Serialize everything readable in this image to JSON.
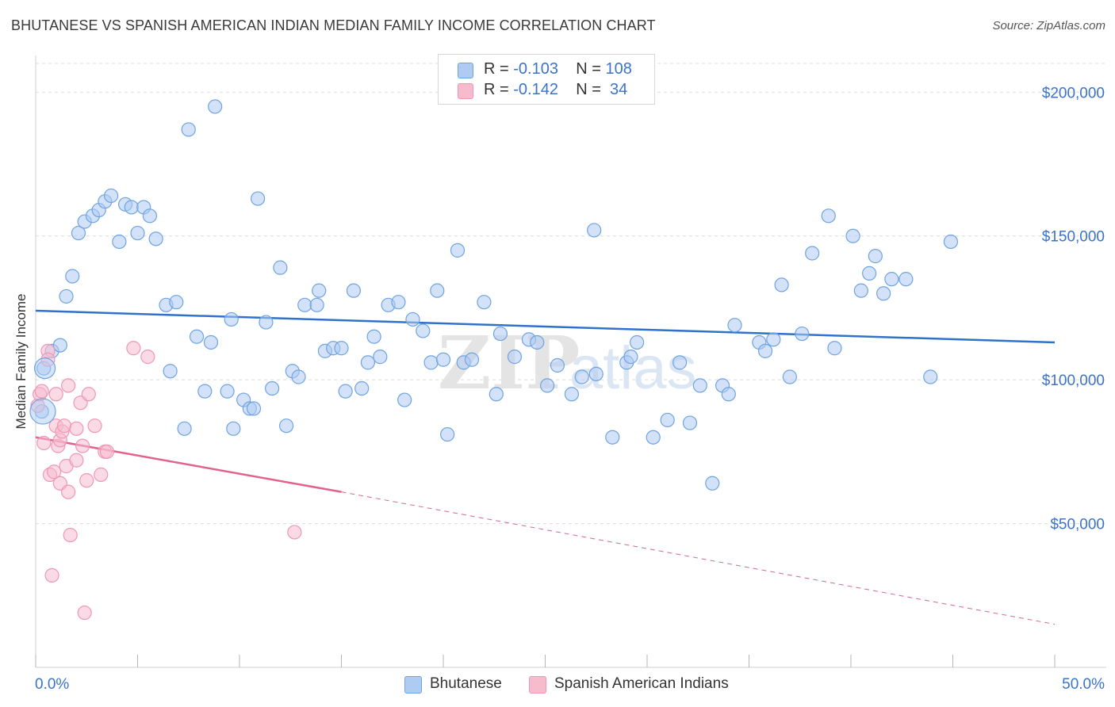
{
  "header": {
    "title": "BHUTANESE VS SPANISH AMERICAN INDIAN MEDIAN FAMILY INCOME CORRELATION CHART",
    "source": "Source: ZipAtlas.com"
  },
  "legend": {
    "rows": [
      {
        "r_label": "R =",
        "r_value": "-0.103",
        "n_label": "N =",
        "n_value": "108",
        "color": "#aecbf2"
      },
      {
        "r_label": "R =",
        "r_value": "-0.142",
        "n_label": "N =",
        "n_value": "34",
        "color": "#f6bccd"
      }
    ]
  },
  "bottom_legend": [
    {
      "label": "Bhutanese",
      "color": "#aecbf2"
    },
    {
      "label": "Spanish American Indians",
      "color": "#f6bccd"
    }
  ],
  "watermark": {
    "zip": "ZIP",
    "atlas": "atlas"
  },
  "chart_data": {
    "type": "scatter",
    "title": "BHUTANESE VS SPANISH AMERICAN INDIAN MEDIAN FAMILY INCOME CORRELATION CHART",
    "ylabel": "Median Family Income",
    "xlim": [
      0,
      50
    ],
    "ylim": [
      0,
      210000
    ],
    "x_tick_labels": [
      "0.0%",
      "50.0%"
    ],
    "y_ticks": [
      50000,
      100000,
      150000,
      200000
    ],
    "y_tick_labels": [
      "$50,000",
      "$100,000",
      "$150,000",
      "$200,000"
    ],
    "grid": true,
    "legend_position": "top-center",
    "series": [
      {
        "name": "Bhutanese",
        "color": "#6fa4e0",
        "fill": "#aecbf2",
        "trend": {
          "x": [
            0,
            50
          ],
          "y": [
            124000,
            113000
          ],
          "color": "#2f72cc"
        },
        "points": [
          [
            0.3,
            89000
          ],
          [
            0.4,
            104000
          ],
          [
            0.8,
            110000
          ],
          [
            1.2,
            112000
          ],
          [
            1.5,
            129000
          ],
          [
            1.8,
            136000
          ],
          [
            2.1,
            151000
          ],
          [
            2.4,
            155000
          ],
          [
            2.8,
            157000
          ],
          [
            3.1,
            159000
          ],
          [
            3.4,
            162000
          ],
          [
            3.7,
            164000
          ],
          [
            4.1,
            148000
          ],
          [
            4.4,
            161000
          ],
          [
            4.7,
            160000
          ],
          [
            5.0,
            151000
          ],
          [
            5.3,
            160000
          ],
          [
            5.6,
            157000
          ],
          [
            5.9,
            149000
          ],
          [
            6.4,
            126000
          ],
          [
            6.6,
            103000
          ],
          [
            6.9,
            127000
          ],
          [
            7.3,
            83000
          ],
          [
            7.5,
            187000
          ],
          [
            7.9,
            115000
          ],
          [
            8.3,
            96000
          ],
          [
            8.6,
            113000
          ],
          [
            8.8,
            195000
          ],
          [
            9.4,
            96000
          ],
          [
            9.6,
            121000
          ],
          [
            9.7,
            83000
          ],
          [
            10.2,
            93000
          ],
          [
            10.5,
            90000
          ],
          [
            10.7,
            90000
          ],
          [
            10.9,
            163000
          ],
          [
            11.3,
            120000
          ],
          [
            11.6,
            97000
          ],
          [
            12.0,
            139000
          ],
          [
            12.3,
            84000
          ],
          [
            12.6,
            103000
          ],
          [
            12.9,
            101000
          ],
          [
            13.2,
            126000
          ],
          [
            13.8,
            126000
          ],
          [
            13.9,
            131000
          ],
          [
            14.2,
            110000
          ],
          [
            14.6,
            111000
          ],
          [
            15.0,
            111000
          ],
          [
            15.2,
            96000
          ],
          [
            15.6,
            131000
          ],
          [
            16.0,
            97000
          ],
          [
            16.3,
            106000
          ],
          [
            16.6,
            115000
          ],
          [
            16.9,
            108000
          ],
          [
            17.3,
            126000
          ],
          [
            17.8,
            127000
          ],
          [
            18.1,
            93000
          ],
          [
            18.5,
            121000
          ],
          [
            19.0,
            117000
          ],
          [
            19.4,
            106000
          ],
          [
            19.7,
            131000
          ],
          [
            20.0,
            107000
          ],
          [
            20.2,
            81000
          ],
          [
            20.7,
            145000
          ],
          [
            21.0,
            106000
          ],
          [
            21.4,
            107000
          ],
          [
            22.0,
            127000
          ],
          [
            22.6,
            95000
          ],
          [
            22.8,
            116000
          ],
          [
            23.5,
            108000
          ],
          [
            24.2,
            114000
          ],
          [
            24.6,
            113000
          ],
          [
            25.1,
            98000
          ],
          [
            25.6,
            105000
          ],
          [
            26.3,
            95000
          ],
          [
            26.8,
            101000
          ],
          [
            27.4,
            152000
          ],
          [
            27.5,
            102000
          ],
          [
            28.3,
            80000
          ],
          [
            29.0,
            106000
          ],
          [
            29.2,
            108000
          ],
          [
            29.5,
            113000
          ],
          [
            30.3,
            80000
          ],
          [
            31.0,
            86000
          ],
          [
            31.6,
            106000
          ],
          [
            32.1,
            85000
          ],
          [
            32.6,
            98000
          ],
          [
            33.2,
            64000
          ],
          [
            33.7,
            98000
          ],
          [
            34.0,
            95000
          ],
          [
            34.3,
            119000
          ],
          [
            35.5,
            113000
          ],
          [
            35.8,
            110000
          ],
          [
            36.2,
            114000
          ],
          [
            36.6,
            133000
          ],
          [
            37.0,
            101000
          ],
          [
            37.6,
            116000
          ],
          [
            38.1,
            144000
          ],
          [
            38.9,
            157000
          ],
          [
            39.2,
            111000
          ],
          [
            40.1,
            150000
          ],
          [
            40.5,
            131000
          ],
          [
            40.9,
            137000
          ],
          [
            41.2,
            143000
          ],
          [
            41.6,
            130000
          ],
          [
            42.0,
            135000
          ],
          [
            42.7,
            135000
          ],
          [
            43.9,
            101000
          ],
          [
            44.9,
            148000
          ]
        ]
      },
      {
        "name": "Spanish American Indians",
        "color": "#ef97b3",
        "fill": "#f6bccd",
        "trend": {
          "x": [
            0,
            15
          ],
          "y": [
            80000,
            61000
          ],
          "color": "#e2628f"
        },
        "trend_extension": {
          "x": [
            15,
            50
          ],
          "y": [
            61000,
            15000
          ]
        },
        "points": [
          [
            0.1,
            91000
          ],
          [
            0.2,
            95000
          ],
          [
            0.3,
            96000
          ],
          [
            0.4,
            78000
          ],
          [
            0.6,
            110000
          ],
          [
            0.6,
            107000
          ],
          [
            0.7,
            67000
          ],
          [
            0.8,
            32000
          ],
          [
            0.9,
            68000
          ],
          [
            1.0,
            84000
          ],
          [
            1.0,
            95000
          ],
          [
            1.1,
            77000
          ],
          [
            1.2,
            79000
          ],
          [
            1.2,
            64000
          ],
          [
            1.3,
            82000
          ],
          [
            1.4,
            84000
          ],
          [
            1.5,
            70000
          ],
          [
            1.6,
            61000
          ],
          [
            1.6,
            98000
          ],
          [
            1.7,
            46000
          ],
          [
            2.0,
            72000
          ],
          [
            2.0,
            83000
          ],
          [
            2.2,
            92000
          ],
          [
            2.3,
            77000
          ],
          [
            2.4,
            19000
          ],
          [
            2.5,
            65000
          ],
          [
            2.6,
            95000
          ],
          [
            2.9,
            84000
          ],
          [
            3.2,
            67000
          ],
          [
            3.4,
            75000
          ],
          [
            3.5,
            75000
          ],
          [
            4.8,
            111000
          ],
          [
            5.5,
            108000
          ],
          [
            12.7,
            47000
          ]
        ]
      }
    ]
  }
}
